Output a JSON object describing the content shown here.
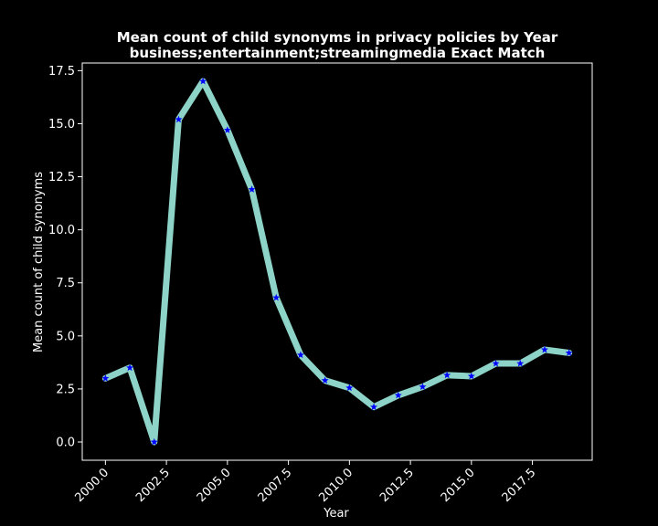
{
  "chart_data": {
    "type": "line",
    "title": "Mean count of child synonyms in privacy policies by Year",
    "subtitle": "business;entertainment;streamingmedia Exact Match",
    "xlabel": "Year",
    "ylabel": "Mean count of child synonyms",
    "xlim": [
      1999.05,
      2019.95
    ],
    "ylim": [
      -0.86,
      17.86
    ],
    "x_ticks": [
      2000.0,
      2002.5,
      2005.0,
      2007.5,
      2010.0,
      2012.5,
      2015.0,
      2017.5
    ],
    "x_tick_labels": [
      "2000.0",
      "2002.5",
      "2005.0",
      "2007.5",
      "2010.0",
      "2012.5",
      "2015.0",
      "2017.5"
    ],
    "y_ticks": [
      0.0,
      2.5,
      5.0,
      7.5,
      10.0,
      12.5,
      15.0,
      17.5
    ],
    "y_tick_labels": [
      "0.0",
      "2.5",
      "5.0",
      "7.5",
      "10.0",
      "12.5",
      "15.0",
      "17.5"
    ],
    "grid": false,
    "series": [
      {
        "x": [
          2000,
          2001,
          2002,
          2003,
          2004,
          2005,
          2006,
          2007,
          2008,
          2009,
          2010,
          2011,
          2012,
          2013,
          2014,
          2015,
          2016,
          2017,
          2018,
          2019
        ],
        "values": [
          3.0,
          3.5,
          0.0,
          15.2,
          17.0,
          14.7,
          11.9,
          6.8,
          4.1,
          2.9,
          2.55,
          1.65,
          2.2,
          2.6,
          3.15,
          3.1,
          3.7,
          3.7,
          4.35,
          4.2
        ],
        "line_color": "#8dd3c7",
        "marker_color": "#0000ff",
        "marker": "star"
      }
    ]
  }
}
